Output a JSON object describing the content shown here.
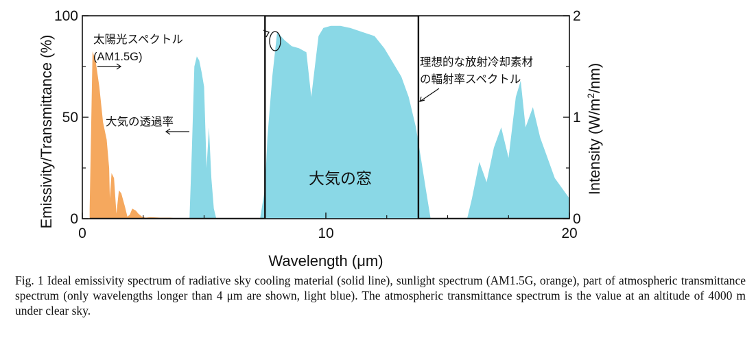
{
  "chart_data": {
    "type": "area",
    "xlabel": "Wavelength (μm)",
    "ylabel_left": "Emissivity/Transmittance (%)",
    "ylabel_right_prefix": "Intensity (W/m",
    "ylabel_right_sup": "2",
    "ylabel_right_suffix": "/nm)",
    "xlim": [
      0,
      20
    ],
    "ylim_left": [
      0,
      100
    ],
    "ylim_right": [
      0,
      2
    ],
    "x_ticks": [
      0,
      10,
      20
    ],
    "y_ticks_left": [
      0,
      50,
      100
    ],
    "y_ticks_right": [
      0,
      1,
      2
    ],
    "grid": false,
    "series": [
      {
        "name": "太陽光スペクトル (AM1.5G)",
        "color": "#f5a85e",
        "axis": "right",
        "x": [
          0.3,
          0.42,
          0.55,
          0.7,
          0.85,
          1.0,
          1.1,
          1.13,
          1.2,
          1.3,
          1.4,
          1.5,
          1.6,
          1.75,
          1.85,
          1.95,
          2.05,
          2.2,
          2.3,
          2.45,
          2.6,
          2.8,
          3.2,
          3.6,
          4.0
        ],
        "y": [
          0.1,
          1.65,
          1.55,
          1.3,
          0.95,
          0.78,
          0.5,
          0.2,
          0.45,
          0.4,
          0.05,
          0.28,
          0.25,
          0.12,
          0.02,
          0.04,
          0.1,
          0.08,
          0.05,
          0.02,
          0.01,
          0.015,
          0.01,
          0.01,
          0.0
        ]
      },
      {
        "name": "大気の透過率",
        "color": "#8ad8e6",
        "axis": "left",
        "x": [
          4.4,
          4.5,
          4.6,
          4.7,
          4.8,
          4.9,
          5.0,
          5.1,
          5.2,
          5.3,
          5.4,
          5.5,
          7.3,
          7.5,
          7.6,
          7.8,
          8.0,
          8.3,
          8.6,
          8.9,
          9.2,
          9.4,
          9.55,
          9.7,
          9.9,
          10.2,
          10.6,
          11.0,
          11.5,
          12.0,
          12.4,
          12.8,
          13.1,
          13.4,
          13.7,
          13.9,
          14.1,
          14.3,
          15.8,
          16.0,
          16.3,
          16.6,
          16.9,
          17.2,
          17.5,
          17.8,
          18.0,
          18.2,
          18.5,
          18.8,
          19.1,
          19.4,
          19.7,
          20.0
        ],
        "y": [
          0,
          35,
          75,
          80,
          78,
          72,
          65,
          25,
          45,
          20,
          5,
          0,
          0,
          15,
          40,
          70,
          92,
          88,
          85,
          84,
          82,
          60,
          75,
          90,
          94,
          95,
          95,
          94,
          92,
          90,
          84,
          76,
          70,
          60,
          45,
          30,
          15,
          0,
          0,
          10,
          28,
          18,
          35,
          45,
          30,
          60,
          68,
          45,
          55,
          40,
          30,
          20,
          15,
          10
        ]
      },
      {
        "name": "理想的な放射冷却素材の輻射率スペクトル",
        "color": "#111111",
        "axis": "left",
        "x": [
          0.3,
          7.5,
          7.5,
          13.8,
          13.8,
          20.0
        ],
        "y": [
          0,
          0,
          100,
          100,
          0,
          0
        ]
      }
    ],
    "annotations": {
      "solar_line1": "太陽光スペクトル",
      "solar_line2": "(AM1.5G)",
      "atm_label": "大気の透過率",
      "ideal_line1": "理想的な放射冷却素材",
      "ideal_line2": "の輻射率スペクトル",
      "window_label": "大気の窓"
    }
  },
  "caption": "Fig. 1    Ideal emissivity spectrum of radiative sky cooling material (solid line), sunlight spectrum (AM1.5G, orange), part of atmospheric transmittance spectrum (only wavelengths longer than 4 μm are shown, light blue). The atmospheric transmittance spectrum is the value at an altitude of 4000 m under clear sky."
}
